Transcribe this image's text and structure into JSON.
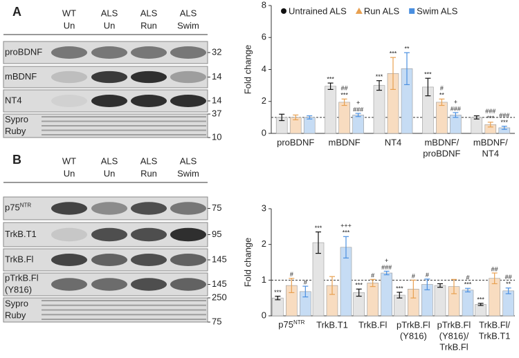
{
  "blots": [
    {
      "letter": "A",
      "lanes": [
        [
          "WT",
          "Un"
        ],
        [
          "ALS",
          "Un"
        ],
        [
          "ALS",
          "Run"
        ],
        [
          "ALS",
          "Swim"
        ]
      ],
      "rows": [
        {
          "label": [
            "proBDNF"
          ],
          "mw": [
            "32"
          ]
        },
        {
          "label": [
            "mBDNF"
          ],
          "mw": [
            "14"
          ]
        },
        {
          "label": [
            "NT4"
          ],
          "mw": [
            "14"
          ]
        },
        {
          "label": [
            "Sypro",
            "Ruby"
          ],
          "mw": [
            "37",
            "10"
          ]
        }
      ]
    },
    {
      "letter": "B",
      "lanes": [
        [
          "WT",
          "Un"
        ],
        [
          "ALS",
          "Un"
        ],
        [
          "ALS",
          "Run"
        ],
        [
          "ALS",
          "Swim"
        ]
      ],
      "rows": [
        {
          "label": [
            {
              "text": "p75",
              "sup": "NTR"
            }
          ],
          "mw": [
            "75"
          ]
        },
        {
          "label": [
            "TrkB.T1"
          ],
          "mw": [
            "95"
          ]
        },
        {
          "label": [
            "TrkB.Fl"
          ],
          "mw": [
            "145"
          ]
        },
        {
          "label": [
            "pTrkB.Fl",
            "(Y816)"
          ],
          "mw": [
            "145"
          ]
        },
        {
          "label": [
            "Sypro",
            "Ruby"
          ],
          "mw": [
            "250",
            "75"
          ]
        }
      ]
    }
  ],
  "chart_data": [
    {
      "type": "bar",
      "y_label": "Fold change",
      "ylim": [
        0,
        8
      ],
      "yticks": [
        0,
        2,
        4,
        6,
        8
      ],
      "reference_line": 1,
      "legend": "top",
      "categories": [
        [
          "proBDNF"
        ],
        [
          "mBDNF"
        ],
        [
          "NT4"
        ],
        [
          "mBDNF/",
          "proBDNF"
        ],
        [
          "mBDNF/",
          "NT4"
        ]
      ],
      "series": [
        {
          "name": "Untrained ALS",
          "color": "#e4e4e4",
          "marker_color": "#111111",
          "marker": "circle",
          "values": [
            1.0,
            2.95,
            3.0,
            2.9,
            1.0
          ],
          "errors": [
            0.2,
            0.2,
            0.3,
            0.55,
            0.1
          ],
          "annotations": [
            null,
            [
              "***"
            ],
            [
              "***"
            ],
            [
              "***"
            ],
            null
          ]
        },
        {
          "name": "Run ALS",
          "color": "#f8dcc0",
          "marker_color": "#e8a050",
          "marker": "triangle",
          "values": [
            1.0,
            1.95,
            3.75,
            1.95,
            0.55
          ],
          "errors": [
            0.15,
            0.2,
            1.0,
            0.2,
            0.15
          ],
          "annotations": [
            null,
            [
              "##",
              "***"
            ],
            [
              "***"
            ],
            [
              "#",
              "**"
            ],
            [
              "###",
              "***"
            ]
          ]
        },
        {
          "name": "Swim ALS",
          "color": "#c6dcf4",
          "marker_color": "#4a8fe0",
          "marker": "square",
          "values": [
            1.0,
            1.15,
            4.05,
            1.15,
            0.35
          ],
          "errors": [
            0.1,
            0.1,
            1.0,
            0.15,
            0.1
          ],
          "annotations": [
            null,
            [
              "+",
              "###"
            ],
            [
              "**"
            ],
            [
              "+",
              "###"
            ],
            [
              "###",
              "***"
            ]
          ]
        }
      ]
    },
    {
      "type": "bar",
      "y_label": "Fold change",
      "ylim": [
        0,
        3
      ],
      "yticks": [
        0,
        1,
        2,
        3
      ],
      "reference_line": 1,
      "legend": false,
      "categories": [
        [
          {
            "text": "p75",
            "sup": "NTR"
          }
        ],
        [
          "TrkB.T1"
        ],
        [
          "TrkB.Fl"
        ],
        [
          "pTrkB.Fl",
          "(Y816)"
        ],
        [
          "pTrkB.Fl",
          "(Y816)/",
          "TrkB.Fl"
        ],
        [
          "TrkB.Fl/",
          "TrkB.T1"
        ]
      ],
      "series": [
        {
          "color": "#e4e4e4",
          "marker_color": "#111111",
          "values": [
            0.5,
            2.05,
            0.65,
            0.58,
            0.85,
            0.32
          ],
          "errors": [
            0.05,
            0.3,
            0.1,
            0.08,
            0.05,
            0.03
          ],
          "annotations": [
            [
              "***"
            ],
            [
              "***"
            ],
            [
              "***"
            ],
            [
              "***"
            ],
            null,
            [
              "***"
            ]
          ]
        },
        {
          "color": "#f8dcc0",
          "marker_color": "#e8a050",
          "values": [
            0.85,
            0.85,
            0.92,
            0.75,
            0.82,
            1.05
          ],
          "errors": [
            0.2,
            0.25,
            0.1,
            0.25,
            0.2,
            0.15
          ],
          "annotations": [
            [
              "#"
            ],
            null,
            [
              "#"
            ],
            [
              "#"
            ],
            null,
            [
              "##"
            ]
          ]
        },
        {
          "color": "#c6dcf4",
          "marker_color": "#4a8fe0",
          "values": [
            0.68,
            1.92,
            1.2,
            0.88,
            0.72,
            0.7
          ],
          "errors": [
            0.15,
            0.3,
            0.05,
            0.15,
            0.05,
            0.08
          ],
          "annotations": [
            [
              "#"
            ],
            [
              "+++",
              "***"
            ],
            [
              "+",
              "###"
            ],
            [
              "#"
            ],
            [
              "#",
              "***"
            ],
            [
              "##",
              "**"
            ]
          ]
        }
      ]
    }
  ]
}
